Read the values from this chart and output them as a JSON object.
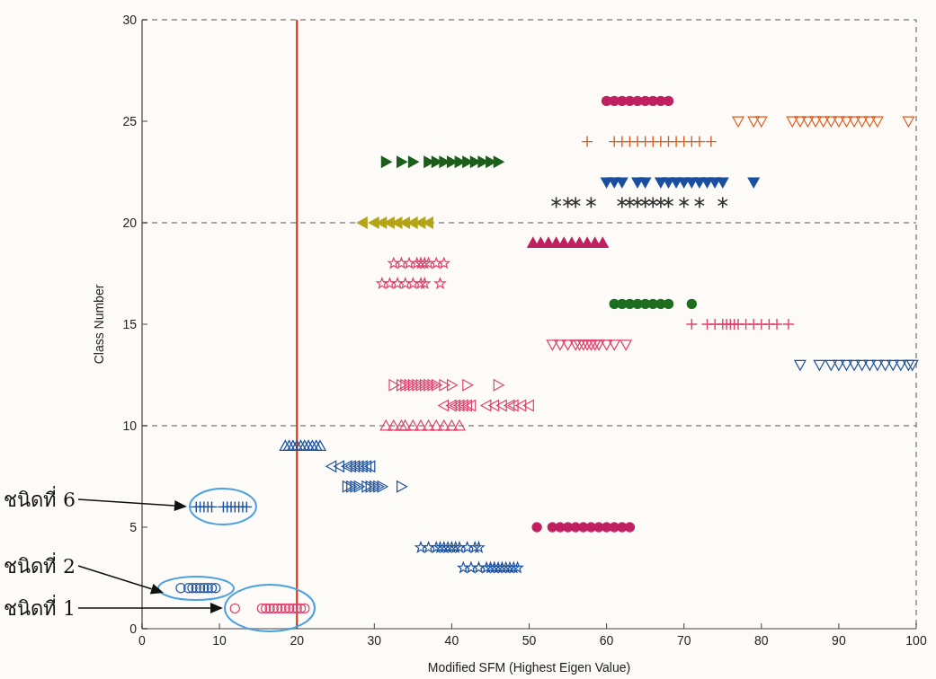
{
  "chart_data": {
    "type": "scatter",
    "xlabel": "Modified SFM (Highest Eigen Value)",
    "ylabel": "Class Number",
    "xlim": [
      0,
      100
    ],
    "ylim": [
      0,
      30
    ],
    "xticks": [
      0,
      10,
      20,
      30,
      40,
      50,
      60,
      70,
      80,
      90,
      100
    ],
    "yticks": [
      0,
      5,
      10,
      15,
      20,
      25,
      30
    ],
    "ref_lines": [
      {
        "axis": "x",
        "value": 20,
        "color": "#e03010",
        "line_style": "solid"
      },
      {
        "axis": "y",
        "value": 10,
        "color": "#555555",
        "line_style": "dashed"
      },
      {
        "axis": "y",
        "value": 20,
        "color": "#555555",
        "line_style": "dashed"
      }
    ],
    "annotations": [
      "ชนิดที่ 6",
      "ชนิดที่ 2",
      "ชนิดที่ 1"
    ],
    "series": [
      {
        "color": "#e0406e",
        "marker": "circle-open",
        "x": [
          12,
          15.5,
          16,
          16.5,
          17,
          17.5,
          18,
          18.5,
          19,
          19.5,
          20,
          20.5,
          21
        ],
        "values": [
          1,
          1,
          1,
          1,
          1,
          1,
          1,
          1,
          1,
          1,
          1,
          1,
          1
        ]
      },
      {
        "color": "#1a4fa0",
        "marker": "circle-open",
        "x": [
          5,
          6,
          6.5,
          7,
          7.5,
          8,
          8.5,
          9,
          9.5
        ],
        "values": [
          2,
          2,
          2,
          2,
          2,
          2,
          2,
          2,
          2
        ]
      },
      {
        "color": "#1a4fa0",
        "marker": "star-open",
        "x": [
          41.5,
          42.5,
          43.5,
          44.5,
          45,
          45.5,
          46,
          46.5,
          47,
          47.5,
          48,
          48.5
        ],
        "values": [
          3,
          3,
          3,
          3,
          3,
          3,
          3,
          3,
          3,
          3,
          3,
          3
        ]
      },
      {
        "color": "#1a4fa0",
        "marker": "star",
        "x": [
          36,
          37,
          38,
          38.5,
          39,
          39.5,
          40,
          40.5,
          41,
          42,
          43,
          43.5
        ],
        "values": [
          4,
          4,
          4,
          4,
          4,
          4,
          4,
          4,
          4,
          4,
          4,
          4
        ]
      },
      {
        "color": "#c02060",
        "marker": "circle",
        "x": [
          51,
          53,
          54,
          55,
          56,
          57,
          58,
          59,
          60,
          61,
          62,
          63
        ],
        "values": [
          5,
          5,
          5,
          5,
          5,
          5,
          5,
          5,
          5,
          5,
          5,
          5
        ]
      },
      {
        "color": "#1a4fa0",
        "marker": "plus",
        "x": [
          7,
          7.5,
          8,
          8.5,
          9,
          10.5,
          11,
          11.5,
          12,
          12.5,
          13,
          13.5
        ],
        "values": [
          6,
          6,
          6,
          6,
          6,
          6,
          6,
          6,
          6,
          6,
          6,
          6
        ]
      },
      {
        "color": "#1a4fa0",
        "marker": "triangle-right-open",
        "x": [
          26.5,
          27,
          27.5,
          28,
          29,
          29.5,
          30,
          30.5,
          31,
          33.5
        ],
        "values": [
          7,
          7,
          7,
          7,
          7,
          7,
          7,
          7,
          7,
          7
        ]
      },
      {
        "color": "#1a4fa0",
        "marker": "triangle-left-open",
        "x": [
          24.5,
          25.5,
          26.5,
          27,
          27.5,
          28,
          28.5,
          29,
          29.5
        ],
        "values": [
          8,
          8,
          8,
          8,
          8,
          8,
          8,
          8,
          8
        ]
      },
      {
        "color": "#1a4fa0",
        "marker": "triangle-up-open",
        "x": [
          18.5,
          19,
          19.5,
          20,
          20.5,
          21,
          21.5,
          22,
          22.5,
          23
        ],
        "values": [
          9,
          9,
          9,
          9,
          9,
          9,
          9,
          9,
          9,
          9
        ]
      },
      {
        "color": "#e0406e",
        "marker": "triangle-up-open",
        "x": [
          31.5,
          32.5,
          33.5,
          34,
          35,
          36,
          37,
          38,
          39,
          40,
          41
        ],
        "values": [
          10,
          10,
          10,
          10,
          10,
          10,
          10,
          10,
          10,
          10,
          10
        ]
      },
      {
        "color": "#e0406e",
        "marker": "triangle-left-open",
        "x": [
          39,
          40,
          40.5,
          41,
          41.5,
          42,
          42.5,
          44.5,
          45.5,
          46.5,
          47.5,
          48,
          49,
          50
        ],
        "values": [
          11,
          11,
          11,
          11,
          11,
          11,
          11,
          11,
          11,
          11,
          11,
          11,
          11,
          11
        ]
      },
      {
        "color": "#e0406e",
        "marker": "triangle-right-open",
        "x": [
          32.5,
          33.5,
          34,
          34.5,
          35,
          35.5,
          36,
          36.5,
          37,
          37.5,
          38,
          39,
          40,
          42,
          46
        ],
        "values": [
          12,
          12,
          12,
          12,
          12,
          12,
          12,
          12,
          12,
          12,
          12,
          12,
          12,
          12,
          12
        ]
      },
      {
        "color": "#1a4fa0",
        "marker": "triangle-down-open",
        "x": [
          85,
          87.5,
          89,
          90,
          91,
          92,
          93,
          94,
          95,
          96,
          97,
          98,
          99,
          99.5
        ],
        "values": [
          13,
          13,
          13,
          13,
          13,
          13,
          13,
          13,
          13,
          13,
          13,
          13,
          13,
          13
        ]
      },
      {
        "color": "#e0406e",
        "marker": "triangle-down-open",
        "x": [
          53,
          54,
          55,
          56,
          56.5,
          57,
          57.5,
          58,
          58.5,
          59,
          60,
          61,
          62.5
        ],
        "values": [
          14,
          14,
          14,
          14,
          14,
          14,
          14,
          14,
          14,
          14,
          14,
          14,
          14
        ]
      },
      {
        "color": "#e0406e",
        "marker": "plus",
        "x": [
          71,
          73,
          74,
          75,
          75.5,
          76,
          76.5,
          77,
          78,
          79,
          80,
          81,
          82,
          83.5
        ],
        "values": [
          15,
          15,
          15,
          15,
          15,
          15,
          15,
          15,
          15,
          15,
          15,
          15,
          15,
          15
        ]
      },
      {
        "color": "#1f6e1f",
        "marker": "circle",
        "x": [
          61,
          62,
          63,
          64,
          65,
          66,
          67,
          68,
          71
        ],
        "values": [
          16,
          16,
          16,
          16,
          16,
          16,
          16,
          16,
          16
        ]
      },
      {
        "color": "#e0406e",
        "marker": "star",
        "x": [
          31,
          32,
          33,
          34,
          35,
          36,
          36.5,
          38.5
        ],
        "values": [
          17,
          17,
          17,
          17,
          17,
          17,
          17,
          17
        ]
      },
      {
        "color": "#e0406e",
        "marker": "star-open",
        "x": [
          32.5,
          33.5,
          34.5,
          35.5,
          36,
          36.5,
          37,
          38,
          39
        ],
        "values": [
          18,
          18,
          18,
          18,
          18,
          18,
          18,
          18,
          18
        ]
      },
      {
        "color": "#c02060",
        "marker": "triangle-up",
        "x": [
          50.5,
          51.5,
          52.5,
          53.5,
          54.5,
          55.5,
          56.5,
          57.5,
          58.5,
          59.5
        ],
        "values": [
          19,
          19,
          19,
          19,
          19,
          19,
          19,
          19,
          19,
          19
        ]
      },
      {
        "color": "#b5a516",
        "marker": "triangle-left",
        "x": [
          28.5,
          30,
          31,
          32,
          33,
          34,
          35,
          36,
          37
        ],
        "values": [
          20,
          20,
          20,
          20,
          20,
          20,
          20,
          20,
          20
        ]
      },
      {
        "color": "#333333",
        "marker": "cross",
        "x": [
          53.5,
          55,
          56,
          58,
          62,
          63,
          64,
          65,
          66,
          67,
          68,
          70,
          72,
          75
        ],
        "values": [
          21,
          21,
          21,
          21,
          21,
          21,
          21,
          21,
          21,
          21,
          21,
          21,
          21,
          21
        ]
      },
      {
        "color": "#1a4fa0",
        "marker": "triangle-down",
        "x": [
          60,
          61,
          62,
          64,
          65,
          67,
          68,
          69,
          70,
          71,
          72,
          73,
          74,
          75,
          79
        ],
        "values": [
          22,
          22,
          22,
          22,
          22,
          22,
          22,
          22,
          22,
          22,
          22,
          22,
          22,
          22,
          22
        ]
      },
      {
        "color": "#1c5e1c",
        "marker": "triangle-right",
        "x": [
          31.5,
          33.5,
          35,
          37,
          38,
          39,
          40,
          41,
          42,
          43,
          44,
          45,
          46
        ],
        "values": [
          23,
          23,
          23,
          23,
          23,
          23,
          23,
          23,
          23,
          23,
          23,
          23,
          23
        ]
      },
      {
        "color": "#e05a1a",
        "marker": "plus",
        "x": [
          57.5,
          61,
          62,
          63,
          64,
          65,
          66,
          67,
          68,
          69,
          70,
          71,
          72,
          73.5
        ],
        "values": [
          24,
          24,
          24,
          24,
          24,
          24,
          24,
          24,
          24,
          24,
          24,
          24,
          24,
          24
        ]
      },
      {
        "color": "#e05a1a",
        "marker": "triangle-down-open",
        "x": [
          77,
          79,
          80,
          84,
          85,
          86,
          87,
          88,
          89,
          90,
          91,
          92,
          93,
          94,
          95,
          99
        ],
        "values": [
          25,
          25,
          25,
          25,
          25,
          25,
          25,
          25,
          25,
          25,
          25,
          25,
          25,
          25,
          25,
          25
        ]
      },
      {
        "color": "#c02060",
        "marker": "circle",
        "x": [
          60,
          61,
          62,
          63,
          64,
          65,
          66,
          67,
          68
        ],
        "values": [
          26,
          26,
          26,
          26,
          26,
          26,
          26,
          26,
          26
        ]
      }
    ]
  }
}
